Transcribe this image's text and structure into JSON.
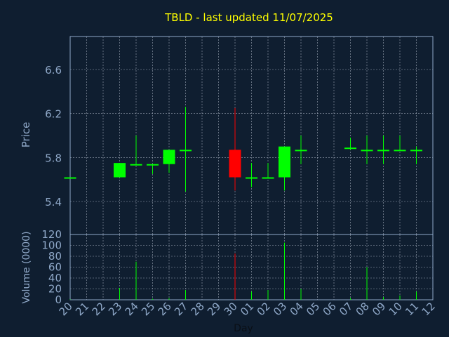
{
  "chart_data": [
    {
      "type": "candlestick",
      "title": "TBLD - last updated 11/07/2025",
      "ylabel": "Price",
      "ylim": [
        5.1,
        6.9
      ],
      "yticks": [
        "5.4",
        "5.8",
        "6.2",
        "6.6"
      ],
      "grid": true,
      "colors": {
        "up": "#00ff00",
        "down": "#ff0000",
        "title": "#ffff00",
        "axis_text": "#8fa8c8",
        "grid": "#c0c8d8"
      },
      "x": [
        "20",
        "21",
        "22",
        "23",
        "24",
        "25",
        "26",
        "27",
        "28",
        "29",
        "30",
        "01",
        "02",
        "03",
        "04",
        "05",
        "06",
        "07",
        "08",
        "09",
        "10",
        "11",
        "12"
      ],
      "candles": [
        {
          "x": "20",
          "open": 5.62,
          "high": 5.62,
          "low": 5.62,
          "close": 5.62
        },
        {
          "x": "23",
          "open": 5.62,
          "high": 5.75,
          "low": 5.62,
          "close": 5.75
        },
        {
          "x": "24",
          "open": 5.74,
          "high": 6.0,
          "low": 5.74,
          "close": 5.74
        },
        {
          "x": "25",
          "open": 5.74,
          "high": 5.74,
          "low": 5.65,
          "close": 5.74
        },
        {
          "x": "26",
          "open": 5.74,
          "high": 5.87,
          "low": 5.66,
          "close": 5.87
        },
        {
          "x": "27",
          "open": 5.87,
          "high": 6.26,
          "low": 5.49,
          "close": 5.87
        },
        {
          "x": "30",
          "open": 5.87,
          "high": 6.25,
          "low": 5.5,
          "close": 5.62
        },
        {
          "x": "01",
          "open": 5.62,
          "high": 5.75,
          "low": 5.53,
          "close": 5.62
        },
        {
          "x": "02",
          "open": 5.62,
          "high": 5.75,
          "low": 5.62,
          "close": 5.62
        },
        {
          "x": "03",
          "open": 5.62,
          "high": 5.9,
          "low": 5.5,
          "close": 5.9
        },
        {
          "x": "04",
          "open": 5.87,
          "high": 6.0,
          "low": 5.74,
          "close": 5.87
        },
        {
          "x": "07",
          "open": 5.89,
          "high": 5.98,
          "low": 5.87,
          "close": 5.89
        },
        {
          "x": "08",
          "open": 5.87,
          "high": 6.0,
          "low": 5.74,
          "close": 5.87
        },
        {
          "x": "09",
          "open": 5.87,
          "high": 6.0,
          "low": 5.74,
          "close": 5.87
        },
        {
          "x": "10",
          "open": 5.87,
          "high": 6.0,
          "low": 5.86,
          "close": 5.87
        },
        {
          "x": "11",
          "open": 5.87,
          "high": 5.9,
          "low": 5.74,
          "close": 5.87
        }
      ]
    },
    {
      "type": "bar",
      "ylabel": "Volume (0000)",
      "xlabel": "Day",
      "ylim": [
        0,
        120
      ],
      "yticks": [
        "0",
        "20",
        "40",
        "60",
        "80",
        "100",
        "120"
      ],
      "categories": [
        "20",
        "21",
        "22",
        "23",
        "24",
        "25",
        "26",
        "27",
        "28",
        "29",
        "30",
        "01",
        "02",
        "03",
        "04",
        "05",
        "06",
        "07",
        "08",
        "09",
        "10",
        "11",
        "12"
      ],
      "values": [
        1,
        0,
        0,
        22,
        70,
        2,
        3,
        18,
        0,
        0,
        85,
        15,
        18,
        105,
        20,
        0,
        0,
        3,
        60,
        5,
        8,
        15,
        0
      ],
      "bar_colors": [
        "up",
        "up",
        "up",
        "up",
        "up",
        "up",
        "up",
        "up",
        "up",
        "up",
        "down",
        "up",
        "up",
        "up",
        "up",
        "up",
        "up",
        "up",
        "up",
        "up",
        "up",
        "up",
        "up"
      ]
    }
  ]
}
